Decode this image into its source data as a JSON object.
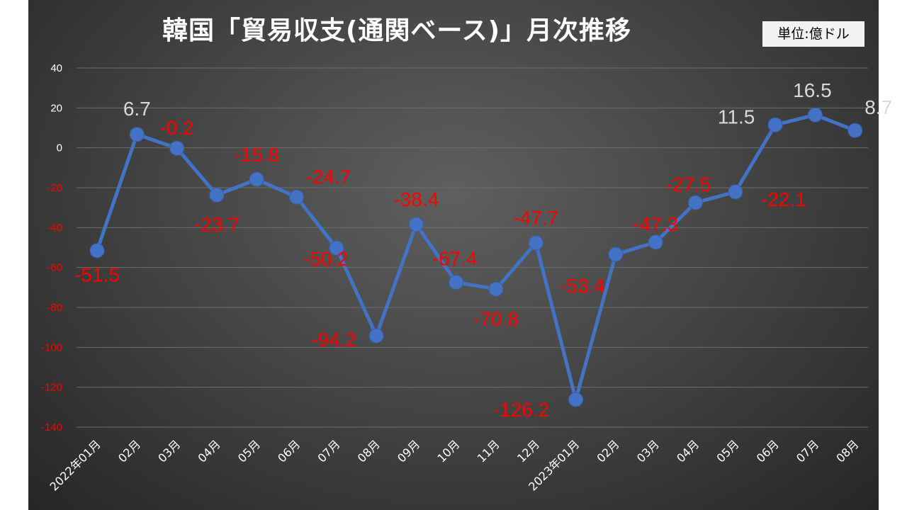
{
  "chart_data": {
    "type": "line",
    "title": "韓国「貿易収支(通関ベース)」月次推移",
    "unit": "単位:億ドル",
    "categories": [
      "2022年01月",
      "02月",
      "03月",
      "04月",
      "05月",
      "06月",
      "07月",
      "08月",
      "09月",
      "10月",
      "11月",
      "12月",
      "2023年01月",
      "02月",
      "03月",
      "04月",
      "05月",
      "06月",
      "07月",
      "08月"
    ],
    "values": [
      -51.5,
      6.7,
      -0.2,
      -23.7,
      -15.8,
      -24.7,
      -50.2,
      -94.2,
      -38.4,
      -67.4,
      -70.8,
      -47.7,
      -126.2,
      -53.4,
      -47.3,
      -27.5,
      -22.1,
      11.5,
      16.5,
      8.7
    ],
    "ylim": [
      -140,
      40
    ],
    "yticks": [
      40,
      20,
      0,
      -20,
      -40,
      -60,
      -80,
      -100,
      -120,
      -140
    ],
    "grid": true,
    "colors": {
      "line": "#4472c4",
      "positive_label": "#d9d9d9",
      "negative_label": "#ff0000",
      "axis_text": "#ffffff"
    }
  }
}
